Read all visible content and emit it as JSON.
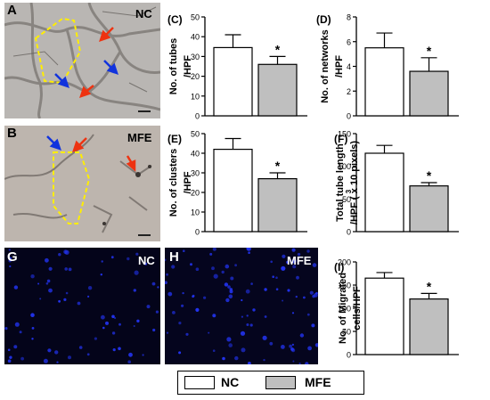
{
  "colors": {
    "nc_fill": "#ffffff",
    "mfe_fill": "#bfbfbf",
    "outline": "#000000",
    "dapi": "#2233ee",
    "arrow_red": "#ee3311",
    "arrow_blue": "#1133dd",
    "dashed": "#ffee00"
  },
  "photos": {
    "A": {
      "panel": "A",
      "tag": "NC"
    },
    "B": {
      "panel": "B",
      "tag": "MFE"
    },
    "G": {
      "panel": "G",
      "tag": "NC"
    },
    "H": {
      "panel": "H",
      "tag": "MFE"
    }
  },
  "legend": {
    "nc": "NC",
    "mfe": "MFE"
  },
  "chart_data": [
    {
      "panel": "(C)",
      "type": "bar",
      "categories": [
        "NC",
        "MFE"
      ],
      "values": [
        34.5,
        26
      ],
      "errors": [
        6.5,
        4
      ],
      "ylim": [
        0,
        50
      ],
      "yticks": [
        0,
        10,
        20,
        30,
        40,
        50
      ],
      "ylabel": "No. of tubes",
      "ylabel2": "/HPF",
      "significance": "*"
    },
    {
      "panel": "(D)",
      "type": "bar",
      "categories": [
        "NC",
        "MFE"
      ],
      "values": [
        5.5,
        3.6
      ],
      "errors": [
        1.2,
        1.1
      ],
      "ylim": [
        0,
        8
      ],
      "yticks": [
        0,
        2,
        4,
        6,
        8
      ],
      "ylabel": "No. of networks",
      "ylabel2": "/HPF",
      "significance": "*"
    },
    {
      "panel": "(E)",
      "type": "bar",
      "categories": [
        "NC",
        "MFE"
      ],
      "values": [
        42,
        27
      ],
      "errors": [
        5.5,
        3
      ],
      "ylim": [
        0,
        50
      ],
      "yticks": [
        0,
        10,
        20,
        30,
        40,
        50
      ],
      "ylabel": "No. of clusters",
      "ylabel2": "/HPF",
      "significance": "*"
    },
    {
      "panel": "(F)",
      "type": "bar",
      "categories": [
        "NC",
        "MFE"
      ],
      "values": [
        120,
        70
      ],
      "errors": [
        12,
        5
      ],
      "ylim": [
        0,
        150
      ],
      "yticks": [
        0,
        50,
        100,
        150
      ],
      "ylabel": "Total tube length",
      "ylabel2": "/HPF ( x 10 pixels)",
      "ylabel2_sup": "3",
      "significance": "*"
    },
    {
      "panel": "(I)",
      "type": "bar",
      "categories": [
        "NC",
        "MFE"
      ],
      "values": [
        165,
        120
      ],
      "errors": [
        12,
        12
      ],
      "ylim": [
        0,
        200
      ],
      "yticks": [
        0,
        50,
        100,
        150,
        200
      ],
      "ylabel": "No. of Migrated",
      "ylabel2": "cells/HPF",
      "significance": "*"
    }
  ]
}
